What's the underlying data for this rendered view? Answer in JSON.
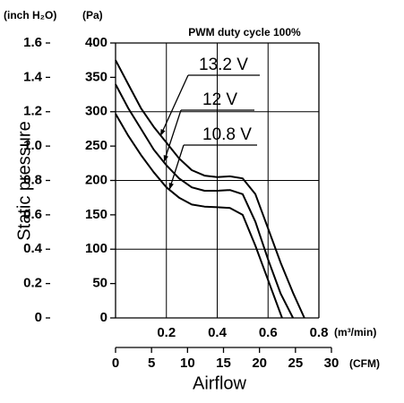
{
  "chart_data": {
    "type": "line",
    "title": "PWM duty cycle 100%",
    "ylabel": "Static pressure",
    "xlabel": "Airflow",
    "y_unit": "(Pa)",
    "y2_unit": "(inch H₂O)",
    "x_unit": "(m³/min)",
    "x2_unit": "(CFM)",
    "xlim": [
      0,
      0.8
    ],
    "xticks": [
      0.2,
      0.4,
      0.6,
      0.8
    ],
    "x2lim": [
      0,
      30
    ],
    "x2ticks": [
      0,
      5,
      10,
      15,
      20,
      25,
      30
    ],
    "ylim": [
      0,
      400
    ],
    "yticks": [
      0,
      50,
      100,
      150,
      200,
      250,
      300,
      350,
      400
    ],
    "y2lim": [
      0,
      1.6
    ],
    "y2ticks": [
      0,
      0.2,
      0.4,
      0.6,
      0.8,
      {
        "value": 1.0,
        "label": "1.0"
      },
      1.2,
      1.4,
      1.6
    ],
    "grid": true,
    "series": [
      {
        "name": "13.2 V",
        "color": "#000000",
        "x": [
          0,
          0.05,
          0.1,
          0.15,
          0.2,
          0.25,
          0.3,
          0.35,
          0.4,
          0.45,
          0.5,
          0.55,
          0.6,
          0.65,
          0.7,
          0.743
        ],
        "values": [
          375,
          340,
          305,
          278,
          255,
          232,
          215,
          207,
          205,
          206,
          203,
          180,
          130,
          80,
          35,
          0
        ]
      },
      {
        "name": "12 V",
        "color": "#000000",
        "x": [
          0,
          0.05,
          0.1,
          0.15,
          0.2,
          0.25,
          0.3,
          0.35,
          0.4,
          0.45,
          0.5,
          0.55,
          0.6,
          0.65,
          0.698
        ],
        "values": [
          340,
          305,
          275,
          245,
          222,
          203,
          190,
          185,
          185,
          186,
          180,
          140,
          85,
          35,
          0
        ]
      },
      {
        "name": "10.8 V",
        "color": "#000000",
        "x": [
          0,
          0.05,
          0.1,
          0.15,
          0.2,
          0.25,
          0.3,
          0.35,
          0.4,
          0.45,
          0.5,
          0.55,
          0.6,
          0.655
        ],
        "values": [
          297,
          265,
          237,
          212,
          190,
          175,
          165,
          162,
          161,
          160,
          150,
          105,
          55,
          0
        ]
      }
    ]
  }
}
